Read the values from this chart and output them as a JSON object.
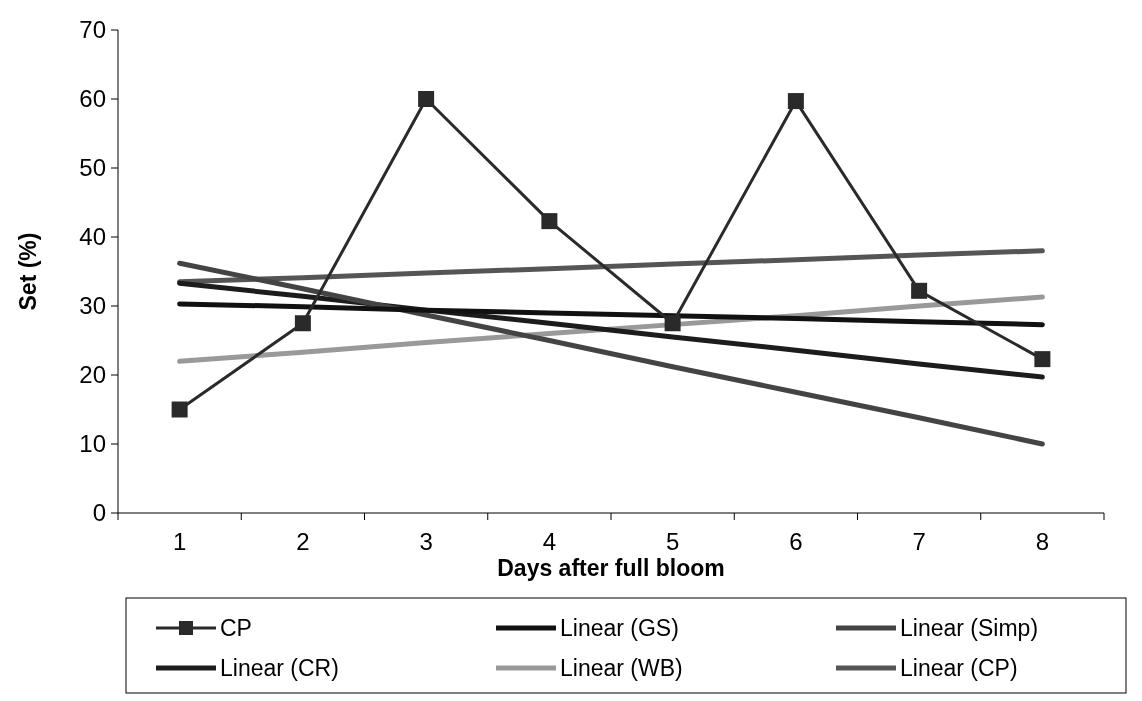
{
  "chart_data": {
    "type": "line",
    "xlabel": "Days after full bloom",
    "ylabel": "Set (%)",
    "categories": [
      "1",
      "2",
      "3",
      "4",
      "5",
      "6",
      "7",
      "8"
    ],
    "ylim": [
      0,
      70
    ],
    "yticks": [
      0,
      10,
      20,
      30,
      40,
      50,
      60,
      70
    ],
    "legend": "bottom",
    "grid": false,
    "line_style": "solid",
    "series": [
      {
        "name": "CP",
        "color": "#2a2a2a",
        "marker": "square",
        "values": [
          15,
          27.5,
          60,
          42.3,
          27.5,
          59.7,
          32.2,
          22.3
        ]
      },
      {
        "name": "Linear (GS)",
        "color": "#111111",
        "marker": "none",
        "values": [
          30.3,
          29.9,
          29.4,
          29.0,
          28.6,
          28.2,
          27.7,
          27.3
        ]
      },
      {
        "name": "Linear (Simp)",
        "color": "#444444",
        "marker": "none",
        "values": [
          36.2,
          32.5,
          28.7,
          25.0,
          21.2,
          17.5,
          13.8,
          10.0
        ]
      },
      {
        "name": "Linear (CR)",
        "color": "#1c1c1c",
        "marker": "none",
        "values": [
          33.3,
          31.4,
          29.4,
          27.5,
          25.5,
          23.6,
          21.6,
          19.7
        ]
      },
      {
        "name": "Linear (WB)",
        "color": "#999999",
        "marker": "none",
        "values": [
          22.0,
          23.3,
          24.7,
          26.0,
          27.3,
          28.6,
          30.0,
          31.3
        ]
      },
      {
        "name": "Linear (CP)",
        "color": "#555555",
        "marker": "none",
        "values": [
          33.5,
          34.1,
          34.8,
          35.4,
          36.1,
          36.7,
          37.4,
          38.0
        ]
      }
    ]
  }
}
